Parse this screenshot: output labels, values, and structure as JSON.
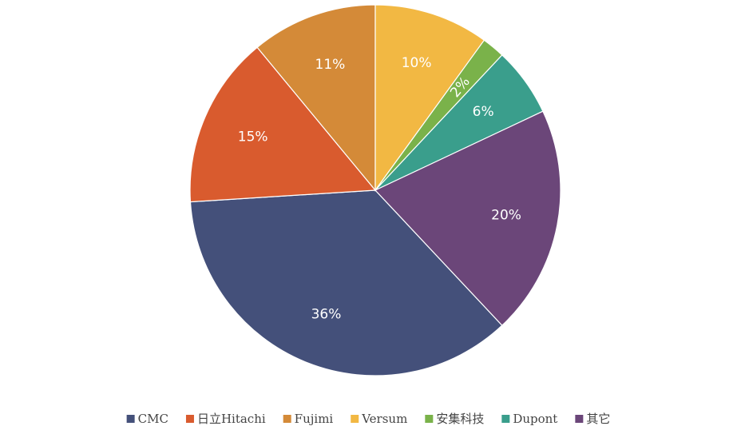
{
  "chart_data": {
    "type": "pie",
    "categories": [
      "CMC",
      "日立Hitachi",
      "Fujimi",
      "Versum",
      "安集科技",
      "Dupont",
      "其它"
    ],
    "values": [
      36,
      15,
      11,
      10,
      2,
      6,
      20
    ],
    "value_labels": [
      "36%",
      "15%",
      "11%",
      "10%",
      "2%",
      "6%",
      "20%"
    ],
    "colors": [
      "#44507a",
      "#d95b2e",
      "#d48a38",
      "#f2b843",
      "#7ab24a",
      "#3a9e8c",
      "#6b4679"
    ],
    "legend": "bottom"
  }
}
